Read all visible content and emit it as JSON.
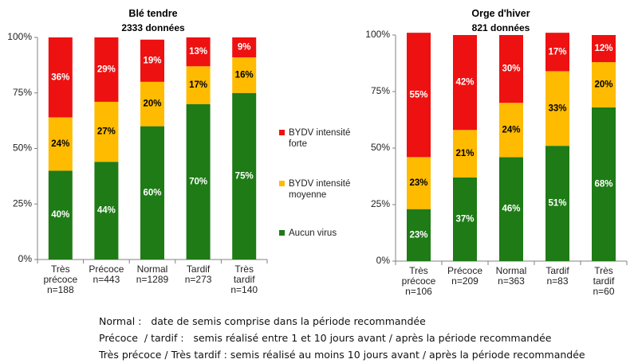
{
  "colors": {
    "forte": "#ee1111",
    "moyenne": "#ffbb00",
    "aucun": "#1e7b16"
  },
  "legend": [
    {
      "label": "BYDV intensité forte",
      "key": "forte"
    },
    {
      "label": "BYDV intensité moyenne",
      "key": "moyenne"
    },
    {
      "label": "Aucun virus",
      "key": "aucun"
    }
  ],
  "notes": [
    "Normal :   date de semis comprise dans la période recommandée",
    "Précoce  / tardif :   semis réalisé entre 1 et 10 jours avant / après la période recommandée",
    "Très précoce / Très tardif : semis réalisé au moins 10 jours avant / après la période recommandée"
  ],
  "chart_data": [
    {
      "type": "bar",
      "stacked": true,
      "title": "Blé tendre",
      "subtitle": "2333 données",
      "ylim": [
        0,
        100
      ],
      "yticks": [
        "0%",
        "25%",
        "50%",
        "75%",
        "100%"
      ],
      "categories": [
        "Très précoce",
        "Précoce",
        "Normal",
        "Tardif",
        "Très tardif"
      ],
      "counts": [
        "n=188",
        "n=443",
        "n=1289",
        "n=273",
        "n=140"
      ],
      "series": [
        {
          "name": "Aucun virus",
          "key": "aucun",
          "values": [
            40,
            44,
            60,
            70,
            75
          ]
        },
        {
          "name": "BYDV intensité moyenne",
          "key": "moyenne",
          "values": [
            24,
            27,
            20,
            17,
            16
          ]
        },
        {
          "name": "BYDV intensité forte",
          "key": "forte",
          "values": [
            36,
            29,
            19,
            13,
            9
          ]
        }
      ]
    },
    {
      "type": "bar",
      "stacked": true,
      "title": "Orge d'hiver",
      "subtitle": "821 données",
      "ylim": [
        0,
        100
      ],
      "yticks": [
        "0%",
        "25%",
        "50%",
        "75%",
        "100%"
      ],
      "categories": [
        "Très précoce",
        "Précoce",
        "Normal",
        "Tardif",
        "Très tardif"
      ],
      "counts": [
        "n=106",
        "n=209",
        "n=363",
        "n=83",
        "n=60"
      ],
      "series": [
        {
          "name": "Aucun virus",
          "key": "aucun",
          "values": [
            23,
            37,
            46,
            51,
            68
          ]
        },
        {
          "name": "BYDV intensité moyenne",
          "key": "moyenne",
          "values": [
            23,
            21,
            24,
            33,
            20
          ]
        },
        {
          "name": "BYDV intensité forte",
          "key": "forte",
          "values": [
            55,
            42,
            30,
            17,
            12
          ]
        }
      ]
    }
  ]
}
